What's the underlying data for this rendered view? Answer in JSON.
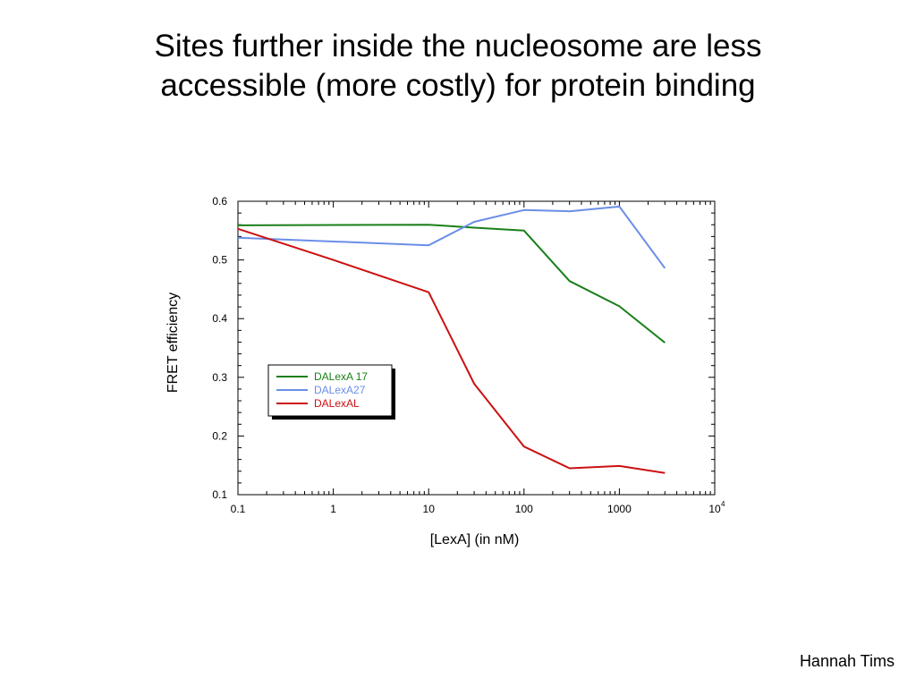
{
  "slide": {
    "title_lines": [
      "Sites further inside the nucleosome are less",
      "accessible (more costly) for protein binding"
    ],
    "credit": "Hannah Tims"
  },
  "chart_data": {
    "type": "line",
    "xlabel": "[LexA] (in nM)",
    "ylabel": "FRET efficiency",
    "xscale": "log",
    "xlim": [
      0.1,
      10000
    ],
    "ylim": [
      0.1,
      0.6
    ],
    "xticks": [
      {
        "value": 0.1,
        "label": "0.1"
      },
      {
        "value": 1,
        "label": "1"
      },
      {
        "value": 10,
        "label": "10"
      },
      {
        "value": 100,
        "label": "100"
      },
      {
        "value": 1000,
        "label": "1000"
      },
      {
        "value": 10000,
        "label": "10",
        "sup": "4"
      }
    ],
    "yticks": [
      {
        "value": 0.1,
        "label": "0.1"
      },
      {
        "value": 0.2,
        "label": "0.2"
      },
      {
        "value": 0.3,
        "label": "0.3"
      },
      {
        "value": 0.4,
        "label": "0.4"
      },
      {
        "value": 0.5,
        "label": "0.5"
      },
      {
        "value": 0.6,
        "label": "0.6"
      }
    ],
    "grid": false,
    "legend_position": "center-left",
    "series": [
      {
        "name": "DALexA 17",
        "color": "#1a7f1a",
        "x": [
          0.1,
          10,
          30,
          100,
          300,
          1000,
          3000
        ],
        "y": [
          0.559,
          0.56,
          0.555,
          0.55,
          0.464,
          0.421,
          0.359
        ]
      },
      {
        "name": "DALexA27",
        "color": "#6a8ee8",
        "x": [
          0.1,
          10,
          30,
          100,
          300,
          1000,
          3000
        ],
        "y": [
          0.538,
          0.525,
          0.565,
          0.585,
          0.583,
          0.591,
          0.486
        ]
      },
      {
        "name": "DALexAL",
        "color": "#cc1111",
        "x": [
          0.1,
          1,
          10,
          30,
          100,
          300,
          1000,
          3000
        ],
        "y": [
          0.553,
          0.5,
          0.445,
          0.289,
          0.182,
          0.145,
          0.149,
          0.137
        ]
      }
    ]
  }
}
